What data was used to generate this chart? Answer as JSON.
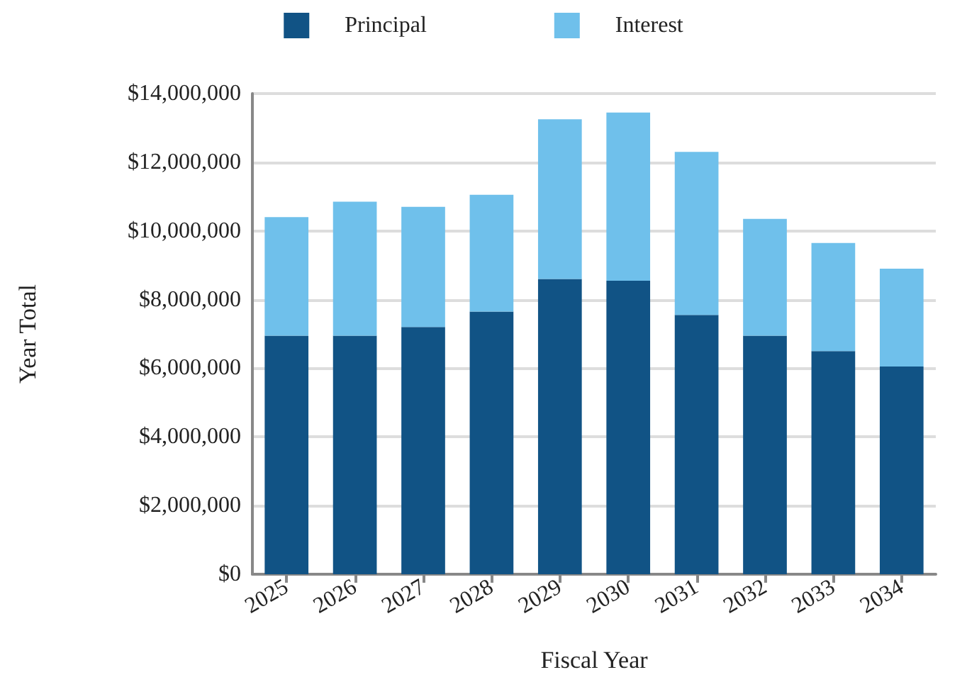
{
  "chart_data": {
    "type": "bar",
    "stacked": true,
    "xlabel": "Fiscal Year",
    "ylabel": "Year Total",
    "categories": [
      "2025",
      "2026",
      "2027",
      "2028",
      "2029",
      "2030",
      "2031",
      "2032",
      "2033",
      "2034"
    ],
    "series": [
      {
        "name": "Principal",
        "color": "#115385",
        "values": [
          6950000,
          6950000,
          7200000,
          7650000,
          8600000,
          8550000,
          7550000,
          6950000,
          6500000,
          6050000
        ]
      },
      {
        "name": "Interest",
        "color": "#6fc0eb",
        "values": [
          3450000,
          3900000,
          3500000,
          3400000,
          4650000,
          4900000,
          4750000,
          3400000,
          3150000,
          2850000
        ]
      }
    ],
    "ylim": [
      0,
      14000000
    ],
    "yticks": [
      {
        "value": 0,
        "label": "$0"
      },
      {
        "value": 2000000,
        "label": "$2,000,000"
      },
      {
        "value": 4000000,
        "label": "$4,000,000"
      },
      {
        "value": 6000000,
        "label": "$6,000,000"
      },
      {
        "value": 8000000,
        "label": "$8,000,000"
      },
      {
        "value": 10000000,
        "label": "$10,000,000"
      },
      {
        "value": 12000000,
        "label": "$12,000,000"
      },
      {
        "value": 14000000,
        "label": "$14,000,000"
      }
    ],
    "grid": "y",
    "legend": "top"
  }
}
